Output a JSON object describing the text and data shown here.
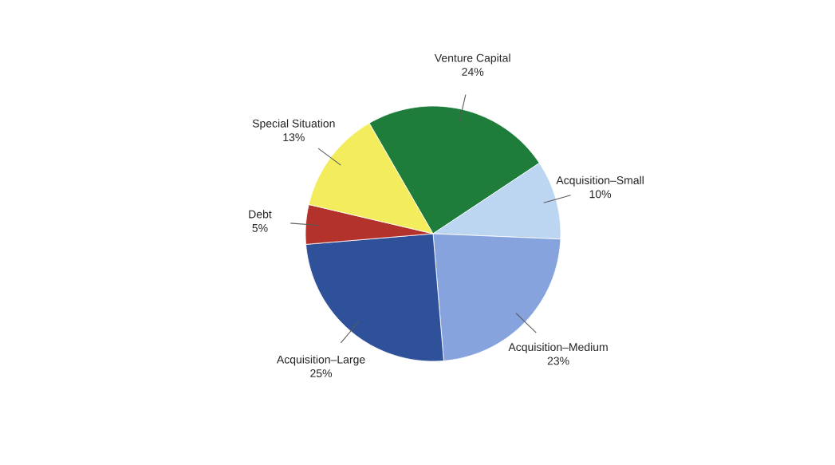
{
  "chart_data": {
    "type": "pie",
    "categories": [
      "Venture Capital",
      "Acquisition–Small",
      "Acquisition–Medium",
      "Acquisition–Large",
      "Debt",
      "Special Situation"
    ],
    "values": [
      24,
      10,
      23,
      25,
      5,
      13
    ],
    "value_labels": [
      "24%",
      "10%",
      "23%",
      "25%",
      "5%",
      "13%"
    ],
    "colors": [
      "#1f7d3c",
      "#bcd6f2",
      "#86a3de",
      "#2f5199",
      "#b3322b",
      "#f3ec5c"
    ]
  }
}
